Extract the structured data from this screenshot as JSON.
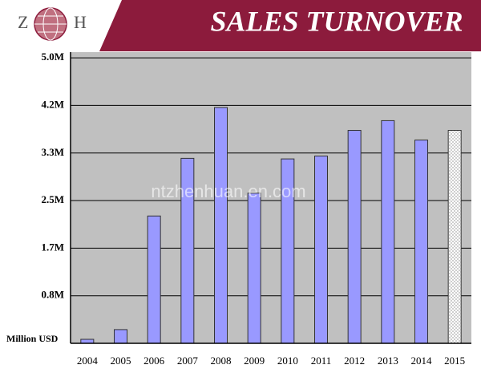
{
  "chart_data": {
    "type": "bar",
    "brand": {
      "left": "Z",
      "right": "H"
    },
    "title": "SALES TURNOVER",
    "y_label": "Million USD",
    "watermark": "ntzhenhuan.en.com",
    "categories": [
      "2004",
      "2005",
      "2006",
      "2007",
      "2008",
      "2009",
      "2010",
      "2011",
      "2012",
      "2013",
      "2014",
      "2015"
    ],
    "values": [
      0.07,
      0.24,
      2.23,
      3.24,
      4.13,
      2.63,
      3.23,
      3.28,
      3.73,
      3.9,
      3.56,
      3.73
    ],
    "color": "#9999ff",
    "dotted_categories": [
      "2015"
    ],
    "plot_background": "#c0c0c0",
    "ylim": [
      0,
      5.1
    ],
    "yticks": [
      {
        "value": 0.833,
        "label": "0.8M"
      },
      {
        "value": 1.667,
        "label": "1.7M"
      },
      {
        "value": 2.5,
        "label": "2.5M"
      },
      {
        "value": 3.333,
        "label": "3.3M"
      },
      {
        "value": 4.167,
        "label": "4.2M"
      },
      {
        "value": 5.0,
        "label": "5.0M"
      }
    ],
    "grid": true
  }
}
